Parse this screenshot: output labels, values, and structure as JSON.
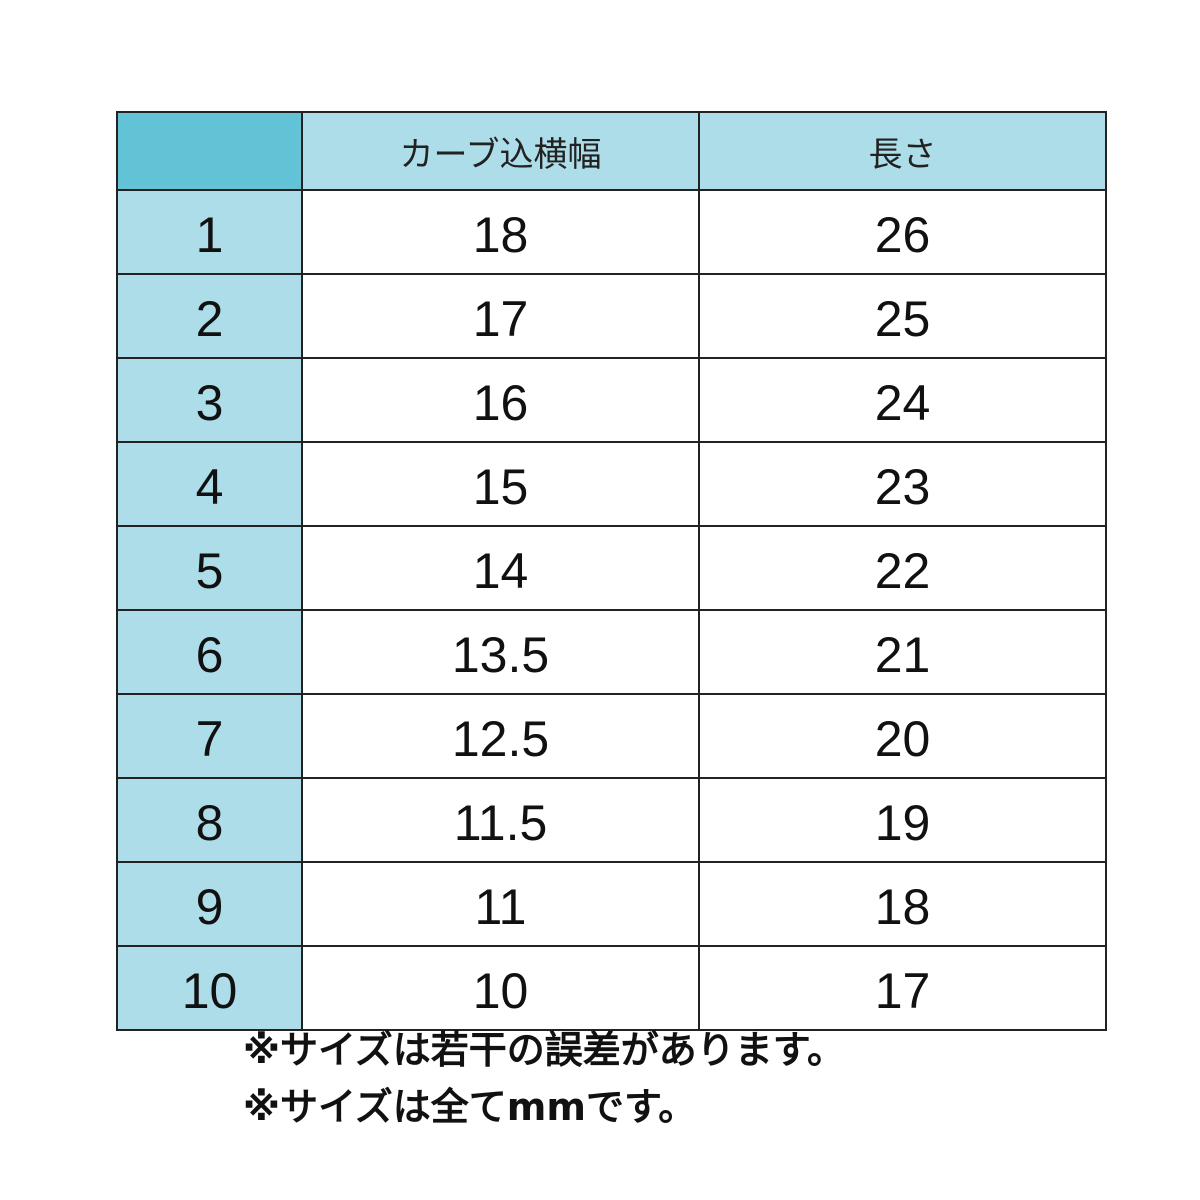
{
  "table": {
    "headers": [
      "",
      "カーブ込横幅",
      "長さ"
    ],
    "rows": [
      {
        "no": "1",
        "width": "18",
        "length": "26"
      },
      {
        "no": "2",
        "width": "17",
        "length": "25"
      },
      {
        "no": "3",
        "width": "16",
        "length": "24"
      },
      {
        "no": "4",
        "width": "15",
        "length": "23"
      },
      {
        "no": "5",
        "width": "14",
        "length": "22"
      },
      {
        "no": "6",
        "width": "13.5",
        "length": "21"
      },
      {
        "no": "7",
        "width": "12.5",
        "length": "20"
      },
      {
        "no": "8",
        "width": "11.5",
        "length": "19"
      },
      {
        "no": "9",
        "width": "11",
        "length": "18"
      },
      {
        "no": "10",
        "width": "10",
        "length": "17"
      }
    ]
  },
  "notes": [
    "※サイズは若干の誤差があります。",
    "※サイズは全てmmです。"
  ],
  "colors": {
    "corner": "#62c3d6",
    "header": "#acdde9",
    "border": "#222222"
  }
}
